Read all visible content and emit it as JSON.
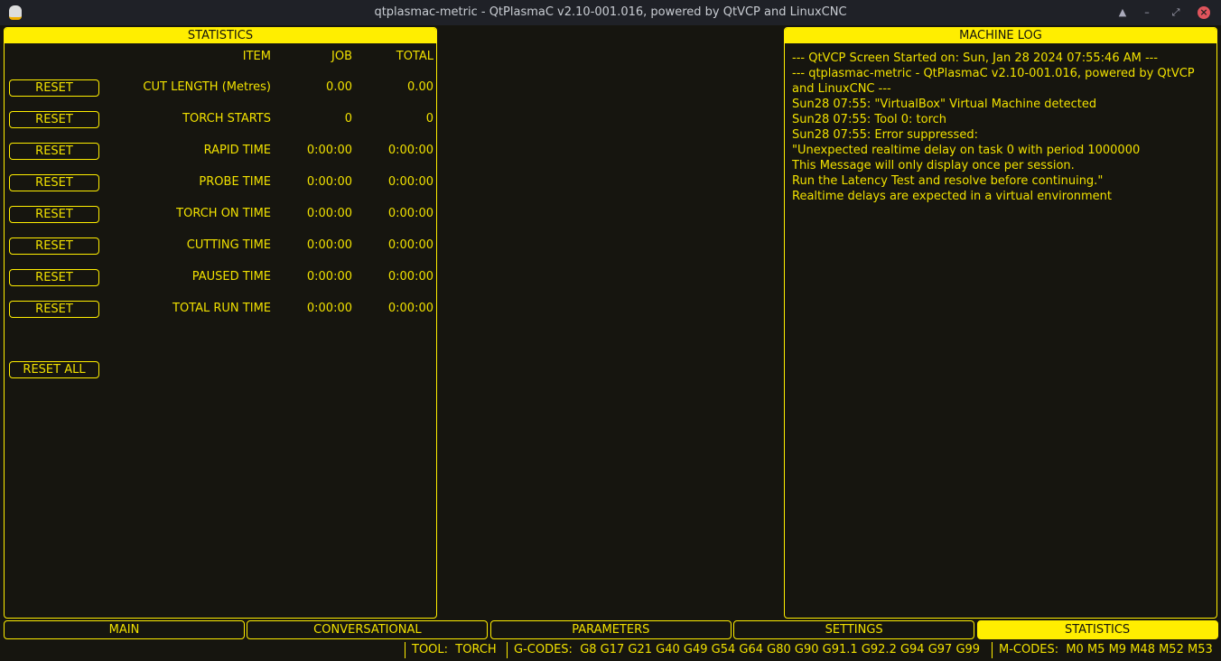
{
  "window": {
    "title": "qtplasmac-metric - QtPlasmaC v2.10-001.016, powered by QtVCP and LinuxCNC"
  },
  "statistics": {
    "title": "STATISTICS",
    "headers": {
      "item": "ITEM",
      "job": "JOB",
      "total": "TOTAL"
    },
    "reset_label": "RESET",
    "reset_all_label": "RESET ALL",
    "rows": [
      {
        "item": "CUT LENGTH (Metres)",
        "job": "0.00",
        "total": "0.00"
      },
      {
        "item": "TORCH STARTS",
        "job": "0",
        "total": "0"
      },
      {
        "item": "RAPID TIME",
        "job": "0:00:00",
        "total": "0:00:00"
      },
      {
        "item": "PROBE TIME",
        "job": "0:00:00",
        "total": "0:00:00"
      },
      {
        "item": "TORCH ON TIME",
        "job": "0:00:00",
        "total": "0:00:00"
      },
      {
        "item": "CUTTING TIME",
        "job": "0:00:00",
        "total": "0:00:00"
      },
      {
        "item": "PAUSED TIME",
        "job": "0:00:00",
        "total": "0:00:00"
      },
      {
        "item": "TOTAL RUN TIME",
        "job": "0:00:00",
        "total": "0:00:00"
      }
    ]
  },
  "machine_log": {
    "title": "MACHINE LOG",
    "lines": [
      "--- QtVCP Screen Started on: Sun, Jan 28 2024 07:55:46 AM ---",
      "--- qtplasmac-metric - QtPlasmaC v2.10-001.016, powered by QtVCP",
      "and LinuxCNC ---",
      "Sun28 07:55: \"VirtualBox\" Virtual Machine detected",
      "Sun28 07:55: Tool 0: torch",
      "Sun28 07:55: Error suppressed:",
      "\"Unexpected realtime delay on task 0 with period 1000000",
      "This Message will only display once per session.",
      "Run the Latency Test and resolve before continuing.\"",
      "Realtime delays are expected in a virtual environment"
    ]
  },
  "tabs": [
    {
      "label": "MAIN"
    },
    {
      "label": "CONVERSATIONAL"
    },
    {
      "label": "PARAMETERS"
    },
    {
      "label": "SETTINGS"
    },
    {
      "label": "STATISTICS",
      "active": true
    }
  ],
  "status": {
    "tool_label": "TOOL:",
    "tool": "TORCH",
    "gcodes_label": "G-CODES:",
    "gcodes": "G8 G17 G21 G40 G49 G54 G64 G80 G90 G91.1 G92.2 G94 G97 G99",
    "mcodes_label": "M-CODES:",
    "mcodes": "M0 M5 M9 M48 M52 M53"
  },
  "colors": {
    "accent": "#ffee00",
    "background": "#16150f"
  }
}
